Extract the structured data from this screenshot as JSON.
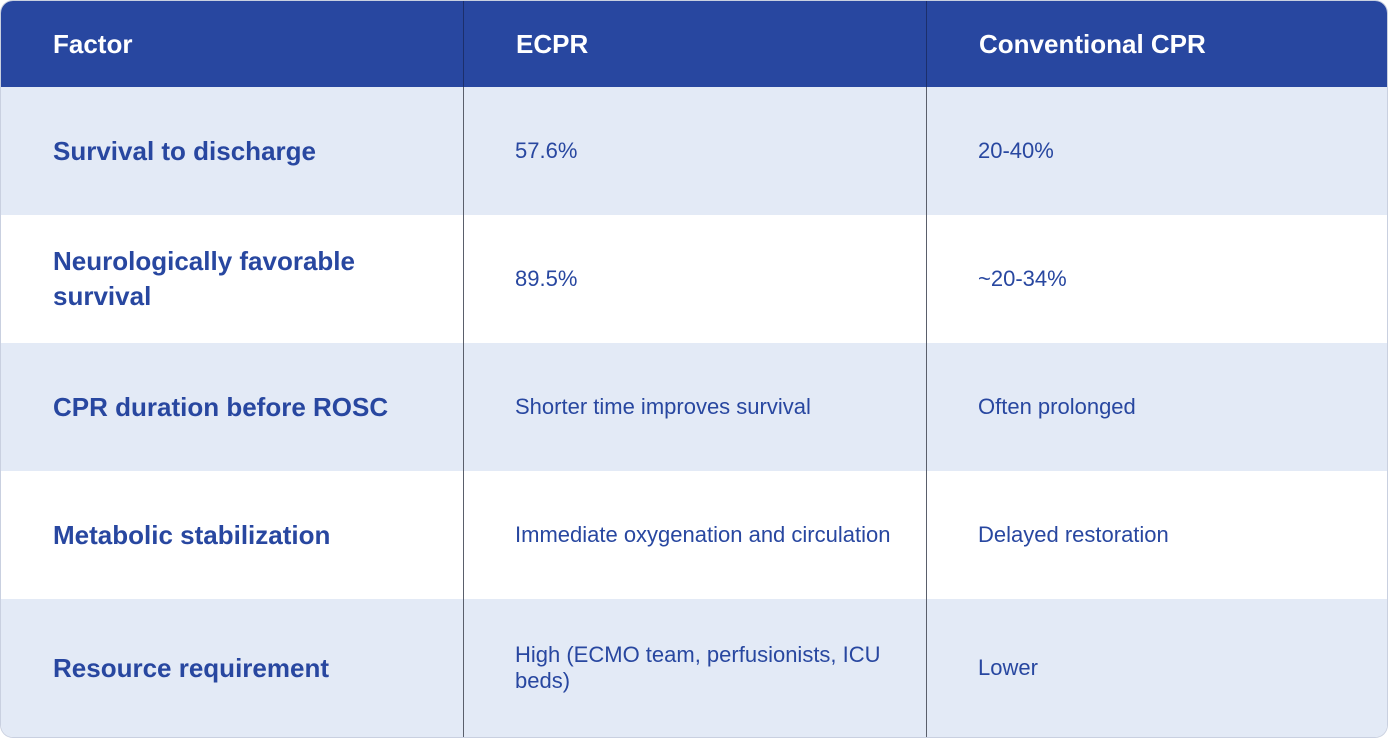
{
  "table": {
    "headers": [
      "Factor",
      "ECPR",
      "Conventional CPR"
    ],
    "rows": [
      {
        "factor": "Survival to discharge",
        "ecpr": "57.6%",
        "conventional": "20-40%"
      },
      {
        "factor": "Neurologically favorable survival",
        "ecpr": "89.5%",
        "conventional": "~20-34%"
      },
      {
        "factor": "CPR duration before ROSC",
        "ecpr": "Shorter time improves survival",
        "conventional": "Often prolonged"
      },
      {
        "factor": "Metabolic stabilization",
        "ecpr": "Immediate oxygenation and circulation",
        "conventional": "Delayed restoration"
      },
      {
        "factor": "Resource requirement",
        "ecpr": "High (ECMO team, perfusionists, ICU beds)",
        "conventional": "Lower"
      }
    ]
  },
  "colors": {
    "header_bg": "#2847a0",
    "header_text": "#ffffff",
    "row_shaded": "#e3eaf6",
    "row_plain": "#ffffff",
    "body_text": "#2847a0"
  }
}
